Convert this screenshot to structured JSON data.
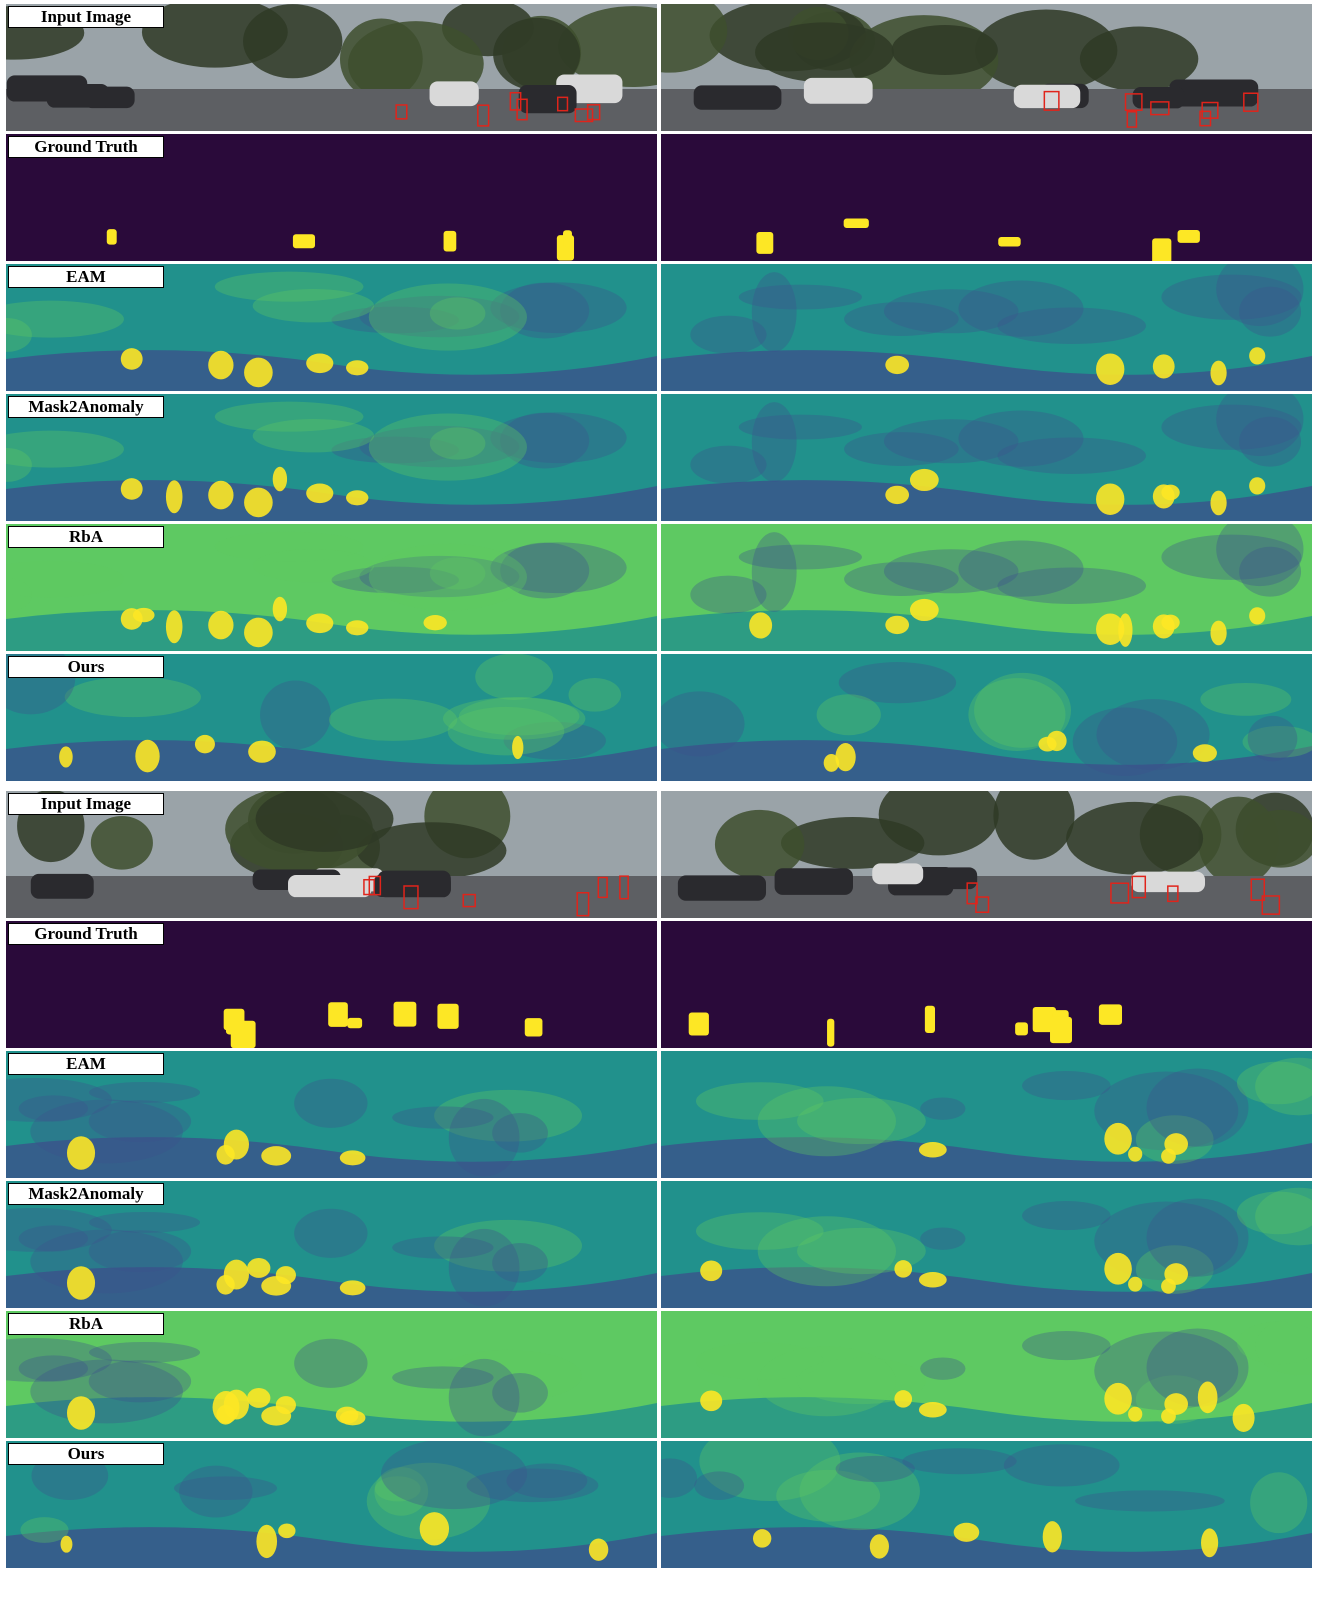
{
  "figure": {
    "groups": [
      {
        "rows": [
          {
            "label": "Input Image",
            "kind": "input"
          },
          {
            "label": "Ground Truth",
            "kind": "gt"
          },
          {
            "label": "EAM",
            "kind": "eam"
          },
          {
            "label": "Mask2Anomaly",
            "kind": "m2a"
          },
          {
            "label": "RbA",
            "kind": "rba"
          },
          {
            "label": "Ours",
            "kind": "ours"
          }
        ]
      },
      {
        "rows": [
          {
            "label": "Input Image",
            "kind": "input"
          },
          {
            "label": "Ground Truth",
            "kind": "gt"
          },
          {
            "label": "EAM",
            "kind": "eam"
          },
          {
            "label": "Mask2Anomaly",
            "kind": "m2a"
          },
          {
            "label": "RbA",
            "kind": "rba"
          },
          {
            "label": "Ours",
            "kind": "ours"
          }
        ]
      }
    ],
    "colors": {
      "viridis_dark": "#2a0a3a",
      "viridis_blue": "#3b528b",
      "viridis_teal": "#21918c",
      "viridis_green": "#5ec962",
      "viridis_yellow": "#fde725",
      "contour_red": "#e0241b"
    }
  }
}
